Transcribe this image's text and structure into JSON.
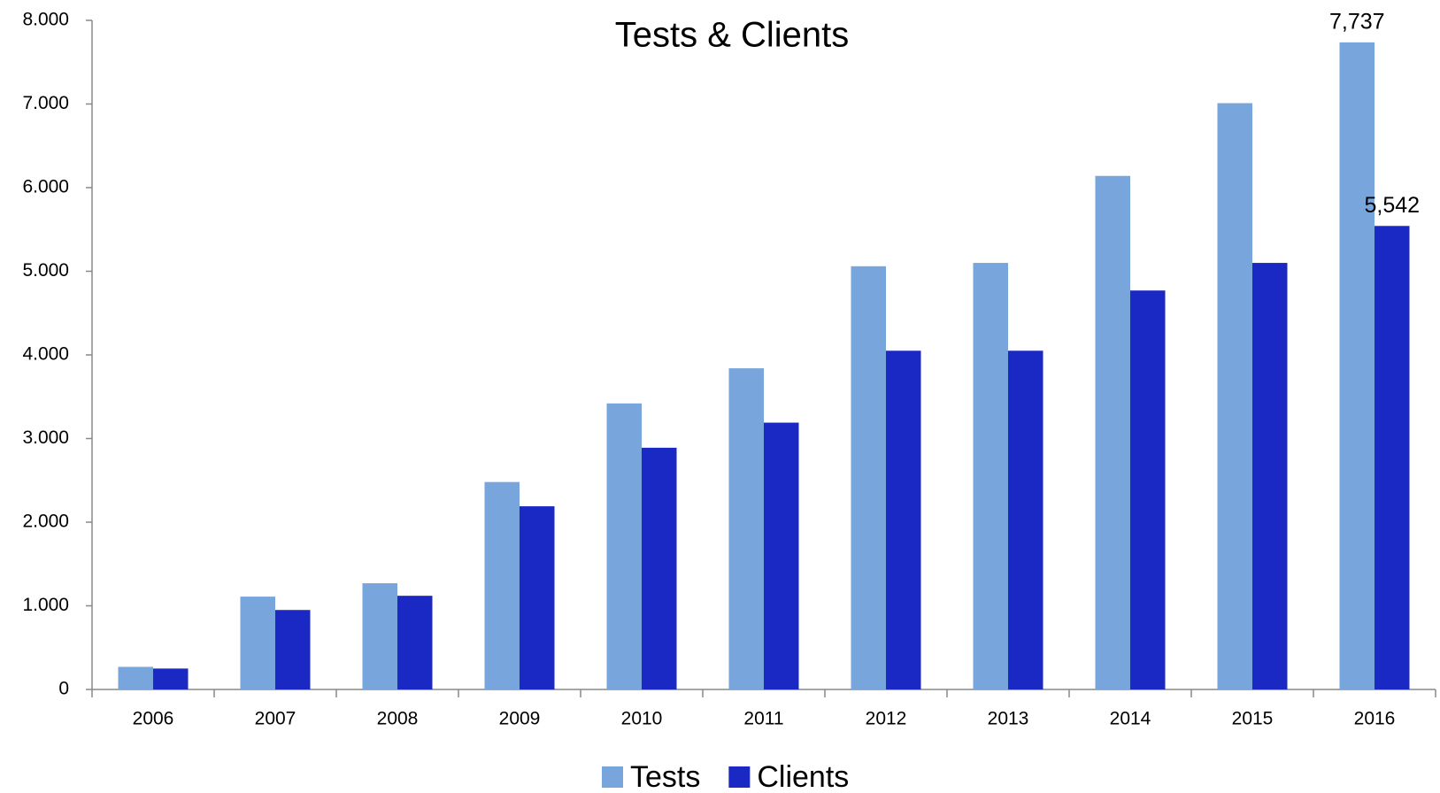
{
  "chart_data": {
    "type": "bar",
    "title": "Tests & Clients",
    "categories": [
      "2006",
      "2007",
      "2008",
      "2009",
      "2010",
      "2011",
      "2012",
      "2013",
      "2014",
      "2015",
      "2016"
    ],
    "series": [
      {
        "name": "Tests",
        "color": "#77a5dc",
        "values": [
          270,
          1110,
          1270,
          2480,
          3420,
          3840,
          5060,
          5100,
          6140,
          7010,
          7737
        ],
        "value_labels": [
          null,
          null,
          null,
          null,
          null,
          null,
          null,
          null,
          null,
          null,
          "7,737"
        ]
      },
      {
        "name": "Clients",
        "color": "#1a29c4",
        "values": [
          250,
          950,
          1120,
          2190,
          2890,
          3190,
          4050,
          4050,
          4770,
          5100,
          5542
        ],
        "value_labels": [
          null,
          null,
          null,
          null,
          null,
          null,
          null,
          null,
          null,
          null,
          "5,542"
        ]
      }
    ],
    "ylim": [
      0,
      8000
    ],
    "yticks": [
      0,
      {
        "value": 1000,
        "label": "1.000"
      },
      {
        "value": 2000,
        "label": "2.000"
      },
      {
        "value": 3000,
        "label": "3.000"
      },
      {
        "value": 4000,
        "label": "4.000"
      },
      {
        "value": 5000,
        "label": "5.000"
      },
      {
        "value": 6000,
        "label": "6.000"
      },
      {
        "value": 7000,
        "label": "7.000"
      },
      {
        "value": 8000,
        "label": "8.000"
      }
    ],
    "grid": false,
    "legend": "bottom"
  }
}
